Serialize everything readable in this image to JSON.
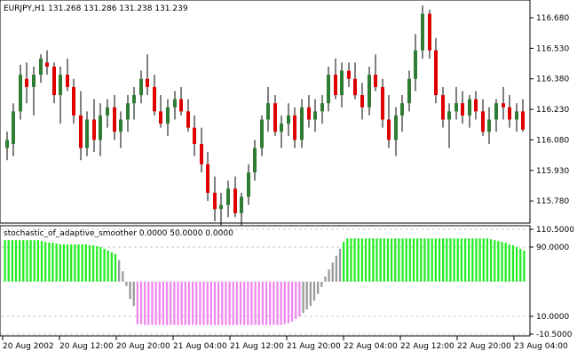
{
  "window": {
    "symbol_header": "EURJPY,H1  131.268 131.286 131.238 131.239",
    "indicator_header": "stochastic_of_adaptive_smoother 0.0000 50.0000 0.0000"
  },
  "colors": {
    "bull_body": "#2e7d32",
    "bear_body": "#e00000",
    "wick": "#000000",
    "hist_up": "#22ee22",
    "hist_down": "#ee88ee",
    "hist_transition": "#999999",
    "grid": "#c8c8c8",
    "frame": "#000000"
  },
  "price_axis": {
    "ticks": [
      "116.680",
      "116.530",
      "116.380",
      "116.230",
      "116.080",
      "115.930",
      "115.780"
    ]
  },
  "indicator_axis": {
    "ticks": [
      "110.5000",
      "90.0000",
      "10.0000",
      "-10.5000"
    ]
  },
  "time_axis": {
    "labels": [
      "20 Aug 2002",
      "20 Aug 12:00",
      "20 Aug 20:00",
      "21 Aug 04:00",
      "21 Aug 12:00",
      "21 Aug 20:00",
      "22 Aug 04:00",
      "22 Aug 12:00",
      "22 Aug 20:00",
      "23 Aug 04:00"
    ]
  },
  "chart_data": [
    {
      "type": "candlestick",
      "title": "EURJPY,H1",
      "ohlc_header": [
        131.268,
        131.286,
        131.238,
        131.239
      ],
      "ylim": [
        115.68,
        116.75
      ],
      "yticks": [
        116.68,
        116.53,
        116.38,
        116.23,
        116.08,
        115.93,
        115.78
      ],
      "candles": [
        [
          116.04,
          116.12,
          115.98,
          116.08
        ],
        [
          116.06,
          116.26,
          116.0,
          116.22
        ],
        [
          116.22,
          116.45,
          116.18,
          116.4
        ],
        [
          116.38,
          116.46,
          116.26,
          116.34
        ],
        [
          116.34,
          116.44,
          116.2,
          116.4
        ],
        [
          116.4,
          116.5,
          116.36,
          116.48
        ],
        [
          116.46,
          116.52,
          116.4,
          116.44
        ],
        [
          116.44,
          116.46,
          116.26,
          116.3
        ],
        [
          116.3,
          116.44,
          116.16,
          116.4
        ],
        [
          116.4,
          116.48,
          116.32,
          116.34
        ],
        [
          116.34,
          116.38,
          116.16,
          116.2
        ],
        [
          116.2,
          116.32,
          115.98,
          116.04
        ],
        [
          116.04,
          116.22,
          116.0,
          116.18
        ],
        [
          116.18,
          116.28,
          116.02,
          116.08
        ],
        [
          116.08,
          116.26,
          116.0,
          116.2
        ],
        [
          116.2,
          116.28,
          116.14,
          116.24
        ],
        [
          116.24,
          116.3,
          116.08,
          116.12
        ],
        [
          116.12,
          116.22,
          116.04,
          116.18
        ],
        [
          116.18,
          116.3,
          116.12,
          116.26
        ],
        [
          116.26,
          116.34,
          116.18,
          116.3
        ],
        [
          116.3,
          116.42,
          116.26,
          116.38
        ],
        [
          116.38,
          116.5,
          116.3,
          116.34
        ],
        [
          116.34,
          116.4,
          116.2,
          116.22
        ],
        [
          116.22,
          116.3,
          116.14,
          116.16
        ],
        [
          116.16,
          116.28,
          116.1,
          116.24
        ],
        [
          116.24,
          116.32,
          116.18,
          116.28
        ],
        [
          116.28,
          116.34,
          116.2,
          116.22
        ],
        [
          116.22,
          116.28,
          116.12,
          116.14
        ],
        [
          116.14,
          116.2,
          116.0,
          116.06
        ],
        [
          116.06,
          116.14,
          115.92,
          115.96
        ],
        [
          115.96,
          116.02,
          115.78,
          115.82
        ],
        [
          115.82,
          115.9,
          115.68,
          115.74
        ],
        [
          115.74,
          115.82,
          115.66,
          115.76
        ],
        [
          115.76,
          115.88,
          115.7,
          115.84
        ],
        [
          115.84,
          115.9,
          115.7,
          115.72
        ],
        [
          115.72,
          115.82,
          115.64,
          115.8
        ],
        [
          115.8,
          115.96,
          115.76,
          115.92
        ],
        [
          115.92,
          116.08,
          115.88,
          116.04
        ],
        [
          116.04,
          116.2,
          116.0,
          116.18
        ],
        [
          116.18,
          116.34,
          116.12,
          116.26
        ],
        [
          116.26,
          116.3,
          116.1,
          116.12
        ],
        [
          116.12,
          116.2,
          116.04,
          116.16
        ],
        [
          116.16,
          116.26,
          116.1,
          116.2
        ],
        [
          116.2,
          116.24,
          116.04,
          116.08
        ],
        [
          116.08,
          116.28,
          116.04,
          116.24
        ],
        [
          116.24,
          116.3,
          116.14,
          116.18
        ],
        [
          116.18,
          116.28,
          116.12,
          116.22
        ],
        [
          116.22,
          116.3,
          116.16,
          116.26
        ],
        [
          116.26,
          116.44,
          116.22,
          116.4
        ],
        [
          116.4,
          116.48,
          116.28,
          116.3
        ],
        [
          116.3,
          116.46,
          116.24,
          116.42
        ],
        [
          116.42,
          116.46,
          116.34,
          116.38
        ],
        [
          116.38,
          116.46,
          116.28,
          116.3
        ],
        [
          116.3,
          116.36,
          116.18,
          116.24
        ],
        [
          116.24,
          116.44,
          116.2,
          116.4
        ],
        [
          116.4,
          116.5,
          116.32,
          116.34
        ],
        [
          116.34,
          116.38,
          116.14,
          116.18
        ],
        [
          116.18,
          116.3,
          116.04,
          116.08
        ],
        [
          116.08,
          116.24,
          116.0,
          116.2
        ],
        [
          116.2,
          116.3,
          116.12,
          116.26
        ],
        [
          116.26,
          116.42,
          116.22,
          116.38
        ],
        [
          116.38,
          116.6,
          116.32,
          116.52
        ],
        [
          116.52,
          116.74,
          116.48,
          116.7
        ],
        [
          116.7,
          116.72,
          116.48,
          116.52
        ],
        [
          116.52,
          116.58,
          116.26,
          116.3
        ],
        [
          116.3,
          116.34,
          116.14,
          116.18
        ],
        [
          116.18,
          116.26,
          116.04,
          116.22
        ],
        [
          116.22,
          116.34,
          116.18,
          116.26
        ],
        [
          116.26,
          116.32,
          116.16,
          116.2
        ],
        [
          116.2,
          116.3,
          116.14,
          116.28
        ],
        [
          116.28,
          116.32,
          116.18,
          116.22
        ],
        [
          116.22,
          116.28,
          116.1,
          116.12
        ],
        [
          116.12,
          116.24,
          116.06,
          116.18
        ],
        [
          116.18,
          116.28,
          116.12,
          116.26
        ],
        [
          116.26,
          116.34,
          116.18,
          116.24
        ],
        [
          116.24,
          116.3,
          116.14,
          116.18
        ],
        [
          116.18,
          116.26,
          116.12,
          116.22
        ],
        [
          116.22,
          116.28,
          116.12,
          116.13
        ]
      ]
    },
    {
      "type": "histogram",
      "title": "stochastic_of_adaptive_smoother",
      "header_values": [
        0.0,
        50.0,
        0.0
      ],
      "ylim": [
        -10.5,
        110.5
      ],
      "yticks": [
        110.5,
        90.0,
        10.0,
        -10.5
      ],
      "baseline": 50,
      "values": [
        98,
        98,
        98,
        98,
        98,
        98,
        98,
        98,
        98,
        98,
        97,
        96,
        95,
        95,
        94,
        93,
        93,
        93,
        93,
        93,
        93,
        93,
        93,
        92,
        92,
        91,
        90,
        88,
        86,
        84,
        82,
        75,
        62,
        45,
        30,
        22,
        1,
        1,
        0,
        0,
        0,
        0,
        0,
        0,
        0,
        0,
        0,
        0,
        0,
        0,
        0,
        0,
        0,
        0,
        0,
        0,
        0,
        0,
        0,
        0,
        0,
        0,
        0,
        0,
        0,
        0,
        0,
        0,
        0,
        0,
        0,
        0,
        0,
        0,
        0,
        0,
        1,
        2,
        4,
        7,
        10,
        14,
        18,
        22,
        28,
        36,
        44,
        56,
        64,
        72,
        80,
        88,
        96,
        100,
        100,
        100,
        100,
        100,
        100,
        100,
        100,
        100,
        100,
        100,
        100,
        100,
        100,
        100,
        100,
        100,
        100,
        100,
        100,
        100,
        100,
        100,
        100,
        100,
        100,
        100,
        100,
        100,
        100,
        100,
        100,
        100,
        100,
        100,
        100,
        100,
        100,
        100,
        99,
        98,
        97,
        96,
        95,
        93,
        92,
        90,
        88,
        86
      ]
    }
  ]
}
